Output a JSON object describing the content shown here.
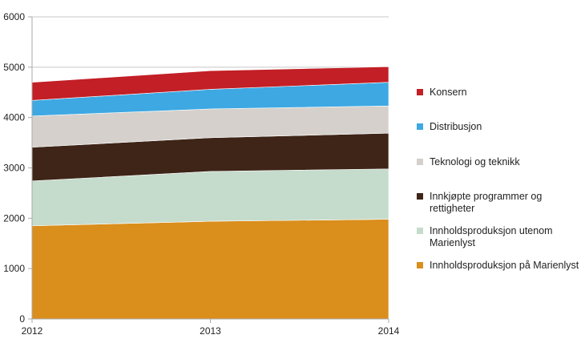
{
  "chart_data": {
    "type": "area",
    "stacked": true,
    "categories": [
      "2012",
      "2013",
      "2014"
    ],
    "ylim": [
      0,
      6000
    ],
    "yticks": [
      "0",
      "1000",
      "2000",
      "3000",
      "4000",
      "5000",
      "6000"
    ],
    "grid": true,
    "legend_position": "right",
    "series": [
      {
        "name": "Innholdsproduksjon på Marienlyst",
        "color": "#DA8E1C",
        "values": [
          1850,
          1940,
          1980
        ]
      },
      {
        "name": "Innholdsproduksjon utenom Marienlyst",
        "color": "#C5DBCB",
        "values": [
          890,
          990,
          1000
        ]
      },
      {
        "name": "Innkjøpte programmer og rettigheter",
        "color": "#3E2518",
        "values": [
          670,
          670,
          710
        ]
      },
      {
        "name": "Teknologi og teknikk",
        "color": "#D5D0CB",
        "values": [
          620,
          570,
          540
        ]
      },
      {
        "name": "Distribusjon",
        "color": "#3EA8E2",
        "values": [
          310,
          390,
          470
        ]
      },
      {
        "name": "Konsern",
        "color": "#C21F26",
        "values": [
          360,
          370,
          310
        ]
      }
    ]
  }
}
